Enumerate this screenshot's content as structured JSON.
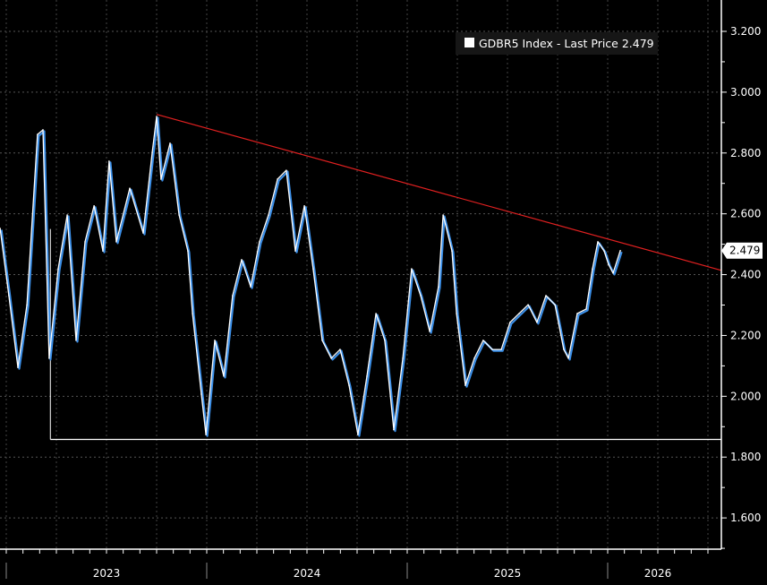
{
  "chart_data": {
    "type": "line",
    "title": "",
    "legend": {
      "label": "GDBR5 Index - Last Price 2.479",
      "placement": "top-right"
    },
    "last_price_label": "2.479",
    "last_price": 2.479,
    "ylim": [
      1.5,
      3.3
    ],
    "xlim": [
      2022.97,
      2026.58
    ],
    "yticks": [
      {
        "value": 3.2,
        "label": "3.200"
      },
      {
        "value": 3.0,
        "label": "3.000"
      },
      {
        "value": 2.8,
        "label": "2.800"
      },
      {
        "value": 2.6,
        "label": "2.600"
      },
      {
        "value": 2.4,
        "label": "2.400"
      },
      {
        "value": 2.2,
        "label": "2.200"
      },
      {
        "value": 2.0,
        "label": "2.000"
      },
      {
        "value": 1.8,
        "label": "1.800"
      },
      {
        "value": 1.6,
        "label": "1.600"
      }
    ],
    "xticks": [
      {
        "value": 2023.5,
        "label": "2023"
      },
      {
        "value": 2024.5,
        "label": "2024"
      },
      {
        "value": 2025.5,
        "label": "2025"
      },
      {
        "value": 2026.25,
        "label": "2026"
      }
    ],
    "year_boundaries": [
      2023,
      2024,
      2025,
      2026
    ],
    "grid": true,
    "series": [
      {
        "name": "GDBR5 Index",
        "color": "#ffffff",
        "accent": "#3b8fe8",
        "x": [
          2022.969,
          2023.013,
          2023.058,
          2023.103,
          2023.156,
          2023.183,
          2023.214,
          2023.259,
          2023.304,
          2023.348,
          2023.393,
          2023.438,
          2023.482,
          2023.513,
          2023.549,
          2023.616,
          2023.683,
          2023.728,
          2023.75,
          2023.772,
          2023.817,
          2023.862,
          2023.906,
          2023.929,
          2023.973,
          2023.996,
          2024.04,
          2024.085,
          2024.129,
          2024.174,
          2024.219,
          2024.263,
          2024.308,
          2024.353,
          2024.397,
          2024.442,
          2024.487,
          2024.531,
          2024.576,
          2024.621,
          2024.665,
          2024.71,
          2024.754,
          2024.799,
          2024.844,
          2024.888,
          2024.933,
          2024.978,
          2025.022,
          2025.067,
          2025.112,
          2025.156,
          2025.179,
          2025.223,
          2025.246,
          2025.29,
          2025.335,
          2025.379,
          2025.424,
          2025.469,
          2025.513,
          2025.558,
          2025.603,
          2025.647,
          2025.692,
          2025.737,
          2025.781,
          2025.804,
          2025.848,
          2025.893,
          2025.924,
          2025.951,
          2025.982,
          2026.004,
          2026.027,
          2026.063
        ],
        "y": [
          2.552,
          2.331,
          2.095,
          2.301,
          2.861,
          2.876,
          2.125,
          2.419,
          2.596,
          2.184,
          2.508,
          2.626,
          2.478,
          2.773,
          2.508,
          2.684,
          2.537,
          2.802,
          2.92,
          2.714,
          2.832,
          2.596,
          2.478,
          2.272,
          2.007,
          1.874,
          2.184,
          2.066,
          2.331,
          2.449,
          2.36,
          2.508,
          2.596,
          2.714,
          2.743,
          2.478,
          2.626,
          2.419,
          2.184,
          2.125,
          2.154,
          2.036,
          1.874,
          2.066,
          2.272,
          2.184,
          1.89,
          2.125,
          2.419,
          2.331,
          2.213,
          2.36,
          2.596,
          2.478,
          2.272,
          2.036,
          2.125,
          2.184,
          2.154,
          2.154,
          2.243,
          2.272,
          2.301,
          2.243,
          2.331,
          2.301,
          2.154,
          2.125,
          2.272,
          2.287,
          2.419,
          2.508,
          2.478,
          2.434,
          2.405,
          2.479
        ]
      }
    ],
    "annotations": [
      {
        "type": "trendline",
        "color": "#e02020",
        "from": [
          2023.75,
          2.927
        ],
        "to": [
          2026.567,
          2.414
        ]
      },
      {
        "type": "support",
        "color": "#ffffff",
        "from": [
          2023.22,
          1.858
        ],
        "to": [
          2026.567,
          1.858
        ]
      }
    ]
  }
}
